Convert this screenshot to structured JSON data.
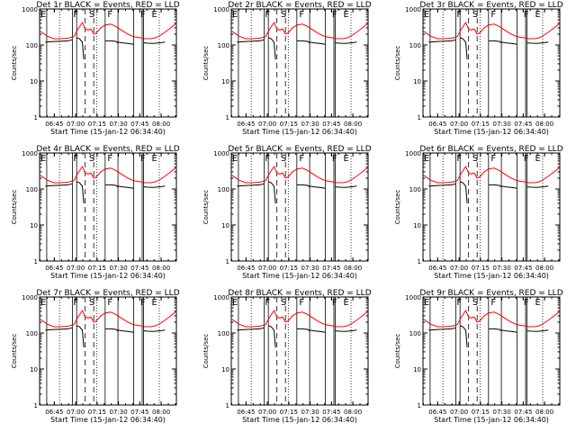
{
  "chart_data": {
    "type": "line",
    "shared": {
      "xlabel": "Start Time (15-Jan-12 06:34:40)",
      "ylabel": "Counts/sec",
      "x_ticks": [
        "06:45",
        "07:00",
        "07:15",
        "07:30",
        "07:45",
        "08:00"
      ],
      "x_tick_minutes": [
        10.33,
        25.33,
        40.33,
        55.33,
        70.33,
        85.33
      ],
      "xlim_minutes": [
        0,
        96
      ],
      "y_scale": "log",
      "ylim": [
        1,
        1000
      ],
      "y_ticks": [
        1,
        10,
        100,
        1000
      ],
      "y_tick_labels": [
        "1",
        "10",
        "100",
        "1000"
      ],
      "colors": {
        "events": "#000000",
        "lld": "#ff0000"
      },
      "markers": [
        {
          "label": "E",
          "minute": 0
        },
        {
          "label": "F",
          "minute": 23
        },
        {
          "label": "S",
          "minute": 34
        },
        {
          "label": "F",
          "minute": 47
        },
        {
          "label": "F",
          "minute": 70
        },
        {
          "label": "E",
          "minute": 78
        }
      ],
      "solid_lines_minutes": [
        5,
        23,
        26,
        46,
        55,
        66,
        72,
        73
      ],
      "dashed_lines_minutes": [
        32,
        38
      ],
      "dotted_lines_minutes": [
        14,
        40,
        84
      ],
      "lld_series": {
        "x": [
          0,
          5,
          10,
          15,
          20,
          24,
          27,
          30,
          32,
          34,
          36,
          38,
          40,
          43,
          46,
          50,
          54,
          58,
          62,
          66,
          70,
          74,
          78,
          82,
          86,
          90,
          96
        ],
        "y": [
          250,
          180,
          150,
          150,
          155,
          170,
          280,
          420,
          280,
          260,
          280,
          200,
          220,
          300,
          360,
          380,
          320,
          250,
          200,
          170,
          160,
          150,
          150,
          160,
          200,
          260,
          400
        ]
      },
      "events_series": [
        {
          "x": [
            4,
            5,
            10,
            15,
            20,
            23
          ],
          "y": [
            120,
            120,
            125,
            128,
            130,
            140
          ]
        },
        {
          "x": [
            26,
            28,
            30,
            31
          ],
          "y": [
            160,
            150,
            120,
            40
          ]
        },
        {
          "x": [
            46,
            50,
            54,
            55
          ],
          "y": [
            130,
            130,
            125,
            110
          ]
        },
        {
          "x": [
            55,
            58,
            62,
            66
          ],
          "y": [
            120,
            115,
            110,
            105
          ]
        },
        {
          "x": [
            73,
            76,
            80,
            84,
            88
          ],
          "y": [
            115,
            112,
            110,
            115,
            120
          ]
        }
      ]
    },
    "panels": [
      {
        "title": "Det 1r BLACK = Events, RED = LLD"
      },
      {
        "title": "Det 2r BLACK = Events, RED = LLD"
      },
      {
        "title": "Det 3r BLACK = Events, RED = LLD"
      },
      {
        "title": "Det 4r BLACK = Events, RED = LLD"
      },
      {
        "title": "Det 5r BLACK = Events, RED = LLD"
      },
      {
        "title": "Det 6r BLACK = Events, RED = LLD"
      },
      {
        "title": "Det 7r BLACK = Events, RED = LLD"
      },
      {
        "title": "Det 8r BLACK = Events, RED = LLD"
      },
      {
        "title": "Det 9r BLACK = Events, RED = LLD"
      }
    ]
  }
}
